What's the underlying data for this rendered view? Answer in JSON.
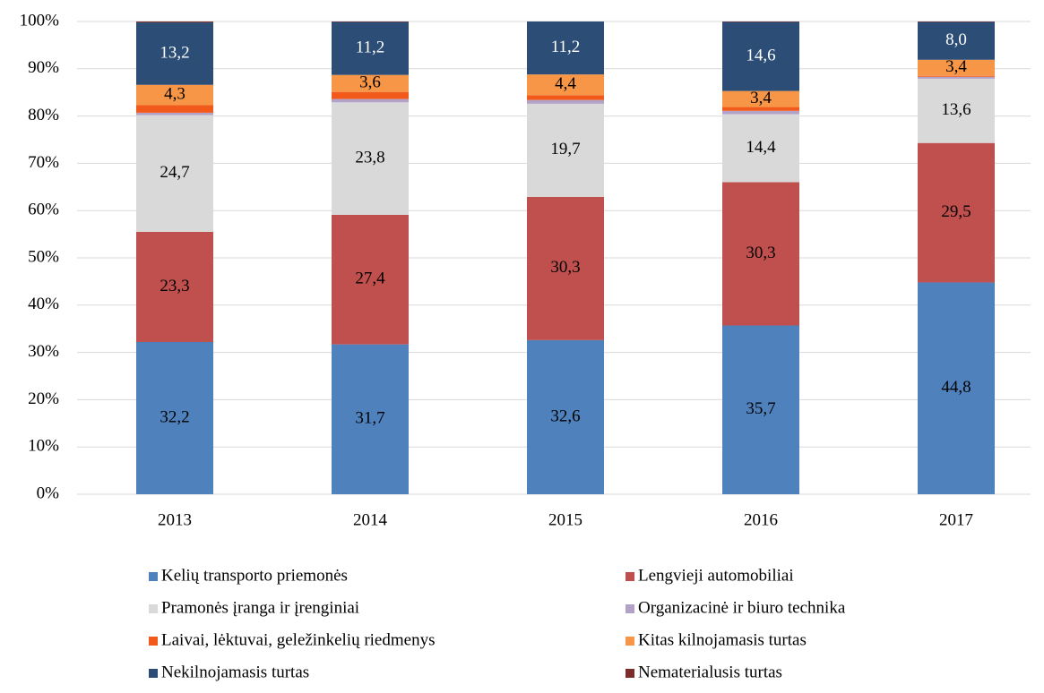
{
  "chart_data": {
    "type": "stacked_bar",
    "categories": [
      "2013",
      "2014",
      "2015",
      "2016",
      "2017"
    ],
    "series": [
      {
        "name": "Kelių transporto priemonės",
        "color": "#4f81bd",
        "values": [
          32.2,
          31.7,
          32.6,
          35.7,
          44.8
        ],
        "value_labels": [
          "32,2",
          "31,7",
          "32,6",
          "35,7",
          "44,8"
        ]
      },
      {
        "name": "Lengvieji automobiliai",
        "color": "#c0504d",
        "values": [
          23.3,
          27.4,
          30.3,
          30.3,
          29.5
        ],
        "value_labels": [
          "23,3",
          "27,4",
          "30,3",
          "30,3",
          "29,5"
        ]
      },
      {
        "name": "Pramonės įranga ir įrenginiai",
        "color": "#d9d9d9",
        "values": [
          24.7,
          23.8,
          19.7,
          14.4,
          13.6
        ],
        "value_labels": [
          "24,7",
          "23,8",
          "19,7",
          "14,4",
          "13,6"
        ]
      },
      {
        "name": "Organizacinė ir biuro technika",
        "color": "#b3a2c7",
        "values": [
          0.5,
          0.7,
          0.8,
          0.7,
          0.4
        ],
        "value_labels": [
          null,
          null,
          null,
          null,
          null
        ]
      },
      {
        "name": "Laivai, lėktuvai, geležinkelių riedmenys",
        "color": "#f25a1c",
        "values": [
          1.6,
          1.5,
          1.0,
          0.8,
          0.2
        ],
        "value_labels": [
          null,
          null,
          null,
          null,
          null
        ]
      },
      {
        "name": "Kitas kilnojamasis turtas",
        "color": "#f79646",
        "values": [
          4.3,
          3.6,
          4.4,
          3.4,
          3.4
        ],
        "value_labels": [
          "4,3",
          "3,6",
          "4,4",
          "3,4",
          "3,4"
        ]
      },
      {
        "name": "Nekilnojamasis turtas",
        "color": "#2c4d75",
        "values": [
          13.2,
          11.2,
          11.2,
          14.6,
          8.0
        ],
        "value_labels": [
          "13,2",
          "11,2",
          "11,2",
          "14,6",
          "8,0"
        ]
      },
      {
        "name": "Nematerialusis turtas",
        "color": "#7b2c2b",
        "values": [
          0.2,
          0.1,
          0.0,
          0.1,
          0.1
        ],
        "value_labels": [
          null,
          null,
          null,
          null,
          null
        ]
      }
    ],
    "ylim": [
      0,
      100
    ],
    "yticks": [
      {
        "value": 0,
        "label": "0%"
      },
      {
        "value": 10,
        "label": "10%"
      },
      {
        "value": 20,
        "label": "20%"
      },
      {
        "value": 30,
        "label": "30%"
      },
      {
        "value": 40,
        "label": "40%"
      },
      {
        "value": 50,
        "label": "50%"
      },
      {
        "value": 60,
        "label": "60%"
      },
      {
        "value": 70,
        "label": "70%"
      },
      {
        "value": 80,
        "label": "80%"
      },
      {
        "value": 90,
        "label": "90%"
      },
      {
        "value": 100,
        "label": "100%"
      }
    ],
    "grid": true,
    "legend": "bottom"
  }
}
